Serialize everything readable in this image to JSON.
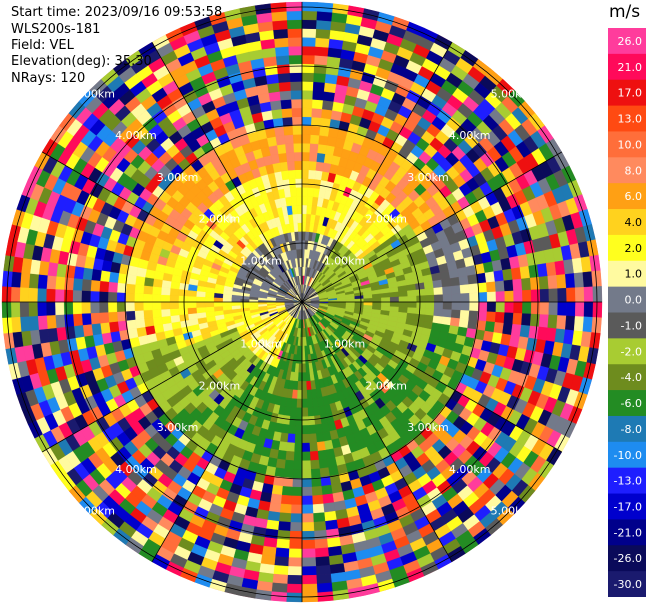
{
  "header": {
    "start_time": "Start time: 2023/09/16 09:53:58",
    "instrument": "WLS200s-181",
    "field": "Field: VEL",
    "elevation": "Elevation(deg): 35.30",
    "nrays": "NRays: 120"
  },
  "colorbar": {
    "unit": "m/s",
    "entries": [
      {
        "label": "26.0",
        "color": "#ff3c9c"
      },
      {
        "label": "21.0",
        "color": "#ff0a5a"
      },
      {
        "label": "17.0",
        "color": "#ee1010"
      },
      {
        "label": "13.0",
        "color": "#ff4a12"
      },
      {
        "label": "10.0",
        "color": "#ff6e3a"
      },
      {
        "label": "8.0",
        "color": "#ff8a5e"
      },
      {
        "label": "6.0",
        "color": "#ffa014"
      },
      {
        "label": "4.0",
        "color": "#ffd21e"
      },
      {
        "label": "2.0",
        "color": "#ffff1e"
      },
      {
        "label": "1.0",
        "color": "#fffaa0"
      },
      {
        "label": "0.0",
        "color": "#737a8a"
      },
      {
        "label": "-1.0",
        "color": "#5a5a5a"
      },
      {
        "label": "-2.0",
        "color": "#a8cc32"
      },
      {
        "label": "-4.0",
        "color": "#6e8c1e"
      },
      {
        "label": "-6.0",
        "color": "#238c23"
      },
      {
        "label": "-8.0",
        "color": "#1e7ab4"
      },
      {
        "label": "-10.0",
        "color": "#1e8cf0"
      },
      {
        "label": "-13.0",
        "color": "#1e1eff"
      },
      {
        "label": "-17.0",
        "color": "#0000cd"
      },
      {
        "label": "-21.0",
        "color": "#00008b"
      },
      {
        "label": "-26.0",
        "color": "#0a0a5a"
      },
      {
        "label": "-30.0",
        "color": "#1a1a6e"
      }
    ]
  },
  "range_rings": [
    "1.00km",
    "2.00km",
    "3.00km",
    "4.00km",
    "5.00km"
  ]
}
